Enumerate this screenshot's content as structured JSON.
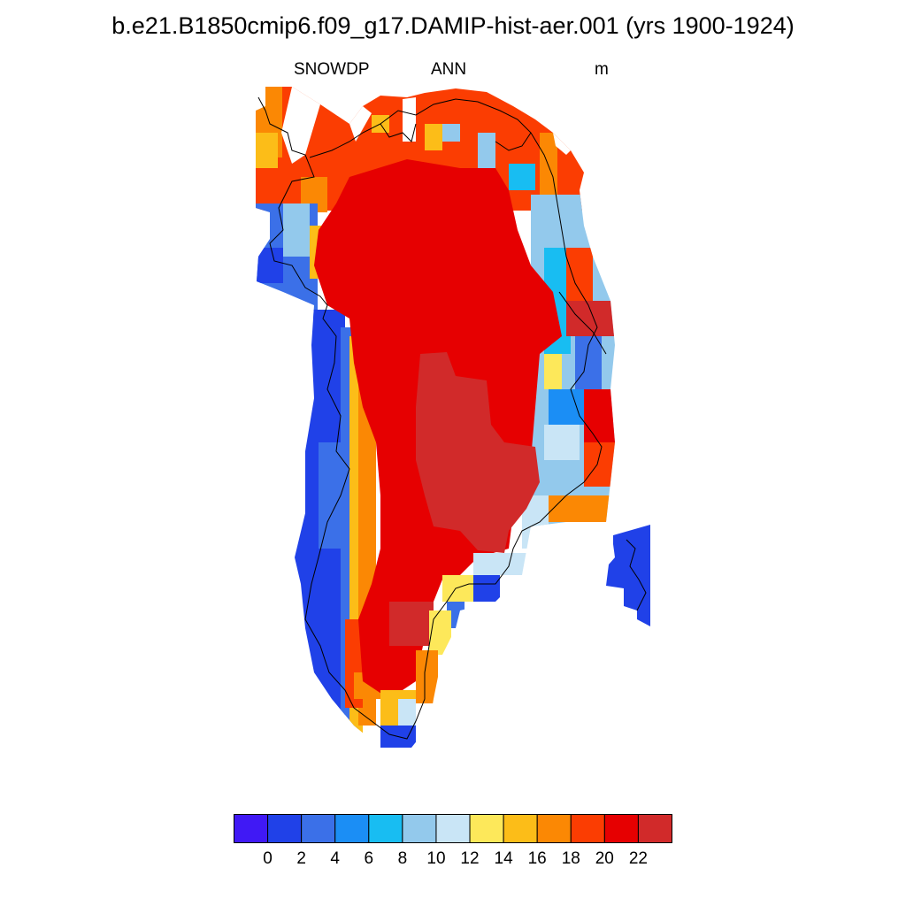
{
  "plot": {
    "title": "b.e21.B1850cmip6.f09_g17.DAMIP-hist-aer.001 (yrs 1900-1924)",
    "variable": "SNOWDP",
    "season": "ANN",
    "units": "m"
  },
  "colorbar": {
    "colors": [
      "#4019f5",
      "#2041e8",
      "#3b70e8",
      "#1b8ef5",
      "#18bdf2",
      "#93c9ec",
      "#c9e5f6",
      "#fde85a",
      "#fcbd18",
      "#fb8804",
      "#fb3d02",
      "#e60001",
      "#d12a2a"
    ],
    "tick_labels": [
      "0",
      "2",
      "4",
      "6",
      "8",
      "10",
      "12",
      "14",
      "16",
      "18",
      "20",
      "22"
    ]
  },
  "map_regions": [
    {
      "name": "interior-ice-sheet",
      "color": "#e60001"
    },
    {
      "name": "central-high-region",
      "color": "#d12a2a"
    },
    {
      "name": "western-margin",
      "color": "#2041e8"
    },
    {
      "name": "eastern-margin",
      "color": "#18bdf2"
    },
    {
      "name": "northern-margin",
      "color": "#fb3d02"
    },
    {
      "name": "southern-tip",
      "color": "#1b8ef5"
    },
    {
      "name": "svalbard-fragment",
      "color": "#2041e8"
    }
  ]
}
